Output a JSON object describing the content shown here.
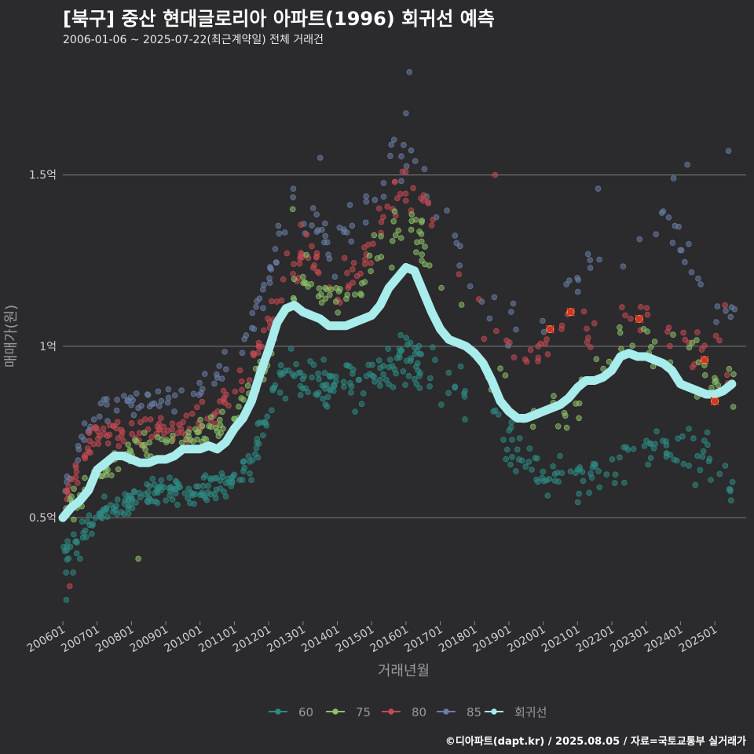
{
  "header": {
    "title": "[북구] 중산 현대글로리아 아파트(1996) 회귀선 예측",
    "subtitle": "2006-01-06 ~ 2025-07-22(최근계약일) 전체 거래건"
  },
  "credit": "©디아파트(dapt.kr) / 2025.08.05 / 자료=국토교통부 실거래가",
  "colors": {
    "background": "#2b2a2c",
    "grid": "#6a6a6a",
    "s60": "#2e8a84",
    "s75": "#8cc06a",
    "s80": "#c24a52",
    "s85": "#6a7ea6",
    "regression": "#a8ecec",
    "marker": "#e0302a"
  },
  "chart_data": {
    "type": "scatter",
    "title": "[북구] 중산 현대글로리아 아파트(1996) 회귀선 예측",
    "xlabel": "거래년월",
    "ylabel": "매매가(원)",
    "xlim": [
      2006.0,
      2025.8
    ],
    "ylim": [
      0.2,
      1.85
    ],
    "y_ticks": [
      0.5,
      1.0,
      1.5
    ],
    "y_tick_labels": [
      "0.5억",
      "1억",
      "1.5억"
    ],
    "x_ticks": [
      2006,
      2007,
      2008,
      2009,
      2010,
      2011,
      2012,
      2013,
      2014,
      2015,
      2016,
      2017,
      2018,
      2019,
      2020,
      2021,
      2022,
      2023,
      2024,
      2025
    ],
    "x_tick_labels": [
      "200601",
      "200701",
      "200801",
      "200901",
      "201001",
      "201101",
      "201201",
      "201301",
      "201401",
      "201501",
      "201601",
      "201701",
      "201801",
      "201901",
      "202001",
      "202101",
      "202201",
      "202301",
      "202401",
      "202501"
    ],
    "legend": {
      "position": "bottom",
      "items": [
        {
          "key": "s60",
          "label": "60"
        },
        {
          "key": "s75",
          "label": "75"
        },
        {
          "key": "s80",
          "label": "80"
        },
        {
          "key": "s85",
          "label": "85"
        },
        {
          "key": "regression",
          "label": "회귀선"
        }
      ]
    },
    "scatter_profiles": {
      "s60": [
        [
          2006.0,
          0.37
        ],
        [
          2007.0,
          0.5
        ],
        [
          2008.0,
          0.55
        ],
        [
          2009.0,
          0.58
        ],
        [
          2010.0,
          0.58
        ],
        [
          2011.0,
          0.6
        ],
        [
          2011.5,
          0.66
        ],
        [
          2012.0,
          0.8
        ],
        [
          2012.5,
          0.92
        ],
        [
          2013.0,
          0.92
        ],
        [
          2013.5,
          0.88
        ],
        [
          2014.0,
          0.88
        ],
        [
          2014.5,
          0.88
        ],
        [
          2015.0,
          0.9
        ],
        [
          2015.5,
          0.94
        ],
        [
          2016.0,
          0.95
        ],
        [
          2016.5,
          0.94
        ],
        [
          2017.0,
          0.92
        ],
        [
          2017.5,
          0.9
        ],
        [
          2018.0,
          0.86
        ],
        [
          2018.5,
          0.8
        ],
        [
          2019.0,
          0.72
        ],
        [
          2019.5,
          0.67
        ],
        [
          2020.0,
          0.63
        ],
        [
          2020.5,
          0.62
        ],
        [
          2021.0,
          0.6
        ],
        [
          2021.5,
          0.62
        ],
        [
          2022.0,
          0.65
        ],
        [
          2022.5,
          0.68
        ],
        [
          2023.0,
          0.7
        ],
        [
          2023.5,
          0.72
        ],
        [
          2024.0,
          0.72
        ],
        [
          2024.5,
          0.68
        ],
        [
          2025.0,
          0.65
        ],
        [
          2025.6,
          0.62
        ]
      ],
      "s75": [
        [
          2006.0,
          0.5
        ],
        [
          2007.0,
          0.62
        ],
        [
          2008.0,
          0.7
        ],
        [
          2009.0,
          0.72
        ],
        [
          2010.0,
          0.74
        ],
        [
          2011.0,
          0.78
        ],
        [
          2012.0,
          0.98
        ],
        [
          2012.5,
          1.15
        ],
        [
          2013.0,
          1.2
        ],
        [
          2013.5,
          1.15
        ],
        [
          2014.0,
          1.12
        ],
        [
          2014.5,
          1.15
        ],
        [
          2015.0,
          1.25
        ],
        [
          2015.5,
          1.32
        ],
        [
          2016.0,
          1.38
        ],
        [
          2016.5,
          1.3
        ],
        [
          2017.0,
          1.2
        ],
        [
          2017.5,
          1.1
        ],
        [
          2018.0,
          1.0
        ],
        [
          2018.5,
          0.95
        ],
        [
          2019.0,
          0.88
        ],
        [
          2019.5,
          0.82
        ],
        [
          2020.0,
          0.78
        ],
        [
          2020.5,
          0.8
        ],
        [
          2021.0,
          0.85
        ],
        [
          2021.5,
          0.92
        ],
        [
          2022.0,
          1.0
        ],
        [
          2022.5,
          1.05
        ],
        [
          2023.0,
          1.02
        ],
        [
          2023.5,
          0.98
        ],
        [
          2024.0,
          1.02
        ],
        [
          2024.5,
          0.95
        ],
        [
          2025.0,
          0.9
        ],
        [
          2025.6,
          0.9
        ]
      ],
      "s80": [
        [
          2006.0,
          0.55
        ],
        [
          2007.0,
          0.75
        ],
        [
          2008.0,
          0.75
        ],
        [
          2009.0,
          0.75
        ],
        [
          2010.0,
          0.78
        ],
        [
          2011.0,
          0.85
        ],
        [
          2012.0,
          1.05
        ],
        [
          2012.5,
          1.22
        ],
        [
          2013.0,
          1.28
        ],
        [
          2013.5,
          1.22
        ],
        [
          2014.0,
          1.18
        ],
        [
          2014.5,
          1.2
        ],
        [
          2015.0,
          1.3
        ],
        [
          2015.5,
          1.4
        ],
        [
          2016.0,
          1.45
        ],
        [
          2016.5,
          1.4
        ],
        [
          2017.0,
          1.3
        ],
        [
          2017.5,
          1.2
        ],
        [
          2018.0,
          1.12
        ],
        [
          2018.5,
          1.05
        ],
        [
          2019.0,
          1.0
        ],
        [
          2019.5,
          0.98
        ],
        [
          2020.0,
          1.02
        ],
        [
          2020.5,
          1.05
        ],
        [
          2021.0,
          1.08
        ],
        [
          2021.5,
          1.05
        ],
        [
          2022.0,
          1.05
        ],
        [
          2022.5,
          1.1
        ],
        [
          2023.0,
          1.08
        ],
        [
          2023.5,
          1.05
        ],
        [
          2024.0,
          1.0
        ],
        [
          2024.5,
          0.98
        ],
        [
          2025.0,
          0.96
        ],
        [
          2025.6,
          0.95
        ]
      ],
      "s85": [
        [
          2006.0,
          0.6
        ],
        [
          2007.0,
          0.82
        ],
        [
          2008.0,
          0.85
        ],
        [
          2009.0,
          0.85
        ],
        [
          2010.0,
          0.88
        ],
        [
          2011.0,
          0.95
        ],
        [
          2012.0,
          1.2
        ],
        [
          2012.5,
          1.35
        ],
        [
          2013.0,
          1.4
        ],
        [
          2013.5,
          1.32
        ],
        [
          2014.0,
          1.28
        ],
        [
          2014.5,
          1.35
        ],
        [
          2015.0,
          1.45
        ],
        [
          2015.5,
          1.52
        ],
        [
          2016.0,
          1.55
        ],
        [
          2016.5,
          1.48
        ],
        [
          2017.0,
          1.38
        ],
        [
          2017.5,
          1.25
        ],
        [
          2018.0,
          1.15
        ],
        [
          2018.5,
          1.1
        ],
        [
          2019.0,
          1.05
        ],
        [
          2019.5,
          1.02
        ],
        [
          2020.0,
          1.05
        ],
        [
          2020.5,
          1.12
        ],
        [
          2021.0,
          1.2
        ],
        [
          2021.5,
          1.25
        ],
        [
          2022.0,
          1.25
        ],
        [
          2022.5,
          1.3
        ],
        [
          2023.0,
          1.32
        ],
        [
          2023.5,
          1.35
        ],
        [
          2024.0,
          1.3
        ],
        [
          2024.5,
          1.2
        ],
        [
          2025.0,
          1.1
        ],
        [
          2025.6,
          1.1
        ]
      ]
    },
    "scatter_notable": {
      "s60": [
        [
          2006.1,
          0.26
        ],
        [
          2006.3,
          0.34
        ],
        [
          2006.5,
          0.38
        ]
      ],
      "s75": [
        [
          2008.2,
          0.38
        ],
        [
          2012.7,
          1.4
        ]
      ],
      "s80": [
        [
          2006.2,
          0.3
        ],
        [
          2015.9,
          1.51
        ],
        [
          2018.6,
          1.5
        ],
        [
          2025.3,
          1.12
        ]
      ],
      "s85": [
        [
          2016.0,
          1.68
        ],
        [
          2016.1,
          1.8
        ],
        [
          2013.5,
          1.55
        ],
        [
          2024.2,
          1.53
        ],
        [
          2025.4,
          1.57
        ],
        [
          2021.6,
          1.46
        ],
        [
          2023.8,
          1.49
        ]
      ]
    },
    "regression": [
      [
        2006.0,
        0.5
      ],
      [
        2006.25,
        0.53
      ],
      [
        2006.5,
        0.55
      ],
      [
        2006.75,
        0.58
      ],
      [
        2007.0,
        0.64
      ],
      [
        2007.25,
        0.66
      ],
      [
        2007.5,
        0.68
      ],
      [
        2007.75,
        0.68
      ],
      [
        2008.0,
        0.67
      ],
      [
        2008.25,
        0.66
      ],
      [
        2008.5,
        0.66
      ],
      [
        2008.75,
        0.67
      ],
      [
        2009.0,
        0.67
      ],
      [
        2009.25,
        0.68
      ],
      [
        2009.5,
        0.7
      ],
      [
        2009.75,
        0.7
      ],
      [
        2010.0,
        0.7
      ],
      [
        2010.25,
        0.71
      ],
      [
        2010.5,
        0.7
      ],
      [
        2010.75,
        0.72
      ],
      [
        2011.0,
        0.76
      ],
      [
        2011.25,
        0.79
      ],
      [
        2011.5,
        0.84
      ],
      [
        2011.75,
        0.92
      ],
      [
        2012.0,
        0.99
      ],
      [
        2012.25,
        1.07
      ],
      [
        2012.5,
        1.11
      ],
      [
        2012.75,
        1.12
      ],
      [
        2013.0,
        1.1
      ],
      [
        2013.25,
        1.09
      ],
      [
        2013.5,
        1.08
      ],
      [
        2013.75,
        1.06
      ],
      [
        2014.0,
        1.06
      ],
      [
        2014.25,
        1.06
      ],
      [
        2014.5,
        1.07
      ],
      [
        2014.75,
        1.08
      ],
      [
        2015.0,
        1.09
      ],
      [
        2015.25,
        1.12
      ],
      [
        2015.5,
        1.17
      ],
      [
        2015.75,
        1.2
      ],
      [
        2016.0,
        1.23
      ],
      [
        2016.25,
        1.22
      ],
      [
        2016.5,
        1.16
      ],
      [
        2016.75,
        1.1
      ],
      [
        2017.0,
        1.05
      ],
      [
        2017.25,
        1.02
      ],
      [
        2017.5,
        1.01
      ],
      [
        2017.75,
        1.0
      ],
      [
        2018.0,
        0.98
      ],
      [
        2018.25,
        0.95
      ],
      [
        2018.5,
        0.9
      ],
      [
        2018.75,
        0.84
      ],
      [
        2019.0,
        0.81
      ],
      [
        2019.25,
        0.79
      ],
      [
        2019.5,
        0.79
      ],
      [
        2019.75,
        0.8
      ],
      [
        2020.0,
        0.81
      ],
      [
        2020.25,
        0.82
      ],
      [
        2020.5,
        0.83
      ],
      [
        2020.75,
        0.85
      ],
      [
        2021.0,
        0.88
      ],
      [
        2021.25,
        0.9
      ],
      [
        2021.5,
        0.9
      ],
      [
        2021.75,
        0.91
      ],
      [
        2022.0,
        0.93
      ],
      [
        2022.25,
        0.97
      ],
      [
        2022.5,
        0.98
      ],
      [
        2022.75,
        0.97
      ],
      [
        2023.0,
        0.97
      ],
      [
        2023.25,
        0.96
      ],
      [
        2023.5,
        0.95
      ],
      [
        2023.75,
        0.93
      ],
      [
        2024.0,
        0.89
      ],
      [
        2024.25,
        0.88
      ],
      [
        2024.5,
        0.87
      ],
      [
        2024.75,
        0.86
      ],
      [
        2025.0,
        0.86
      ],
      [
        2025.25,
        0.87
      ],
      [
        2025.5,
        0.89
      ]
    ],
    "highlighted": [
      [
        2020.2,
        1.05
      ],
      [
        2020.8,
        1.1
      ],
      [
        2022.8,
        1.08
      ],
      [
        2024.7,
        0.96
      ],
      [
        2025.0,
        0.84
      ]
    ],
    "point_counts": {
      "s60": 420,
      "s75": 230,
      "s80": 230,
      "s85": 170
    }
  }
}
